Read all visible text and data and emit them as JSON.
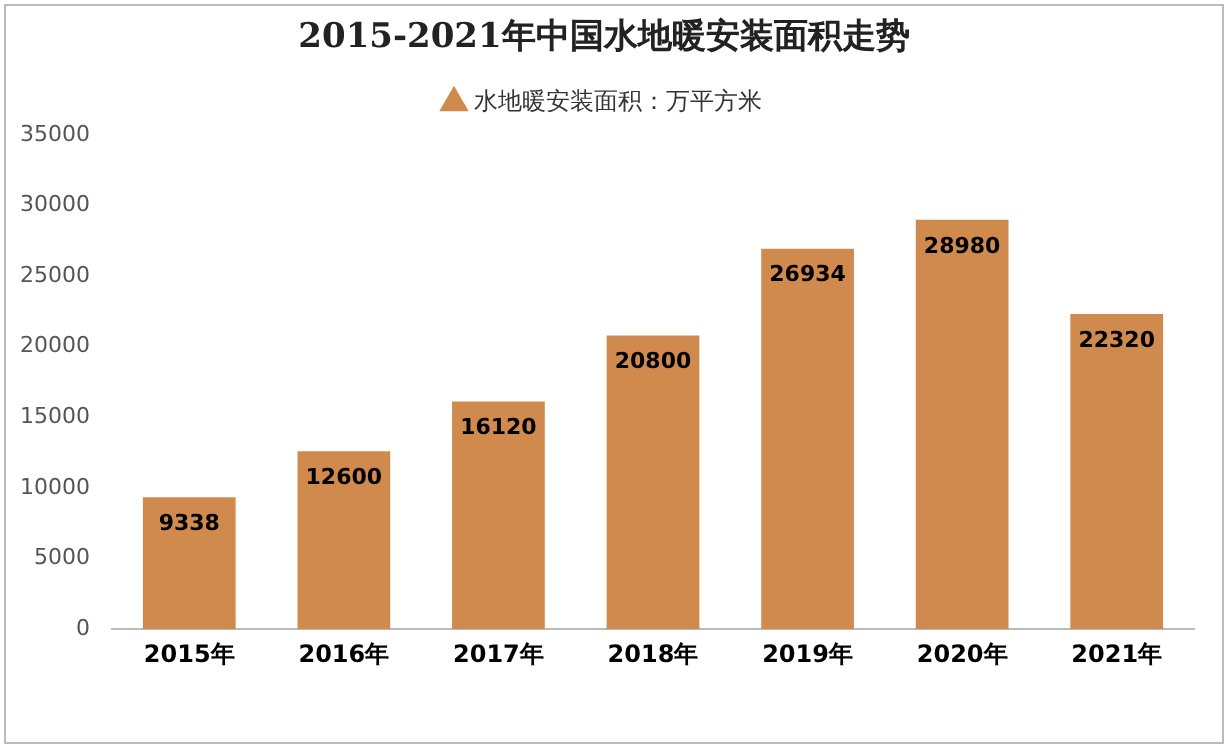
{
  "chart_data": {
    "type": "bar",
    "title": "2015-2021年中国水地暖安装面积走势",
    "categories": [
      "2015年",
      "2016年",
      "2017年",
      "2018年",
      "2019年",
      "2020年",
      "2021年"
    ],
    "series": [
      {
        "name": "水地暖安装面积：万平方米",
        "color": "#d08a4e",
        "values": [
          9338,
          12600,
          16120,
          20800,
          26934,
          28980,
          22320
        ]
      }
    ],
    "ylim": [
      0,
      35000
    ],
    "yticks": [
      0,
      5000,
      10000,
      15000,
      20000,
      25000,
      30000,
      35000
    ],
    "legend": "top",
    "data_labels": true
  }
}
